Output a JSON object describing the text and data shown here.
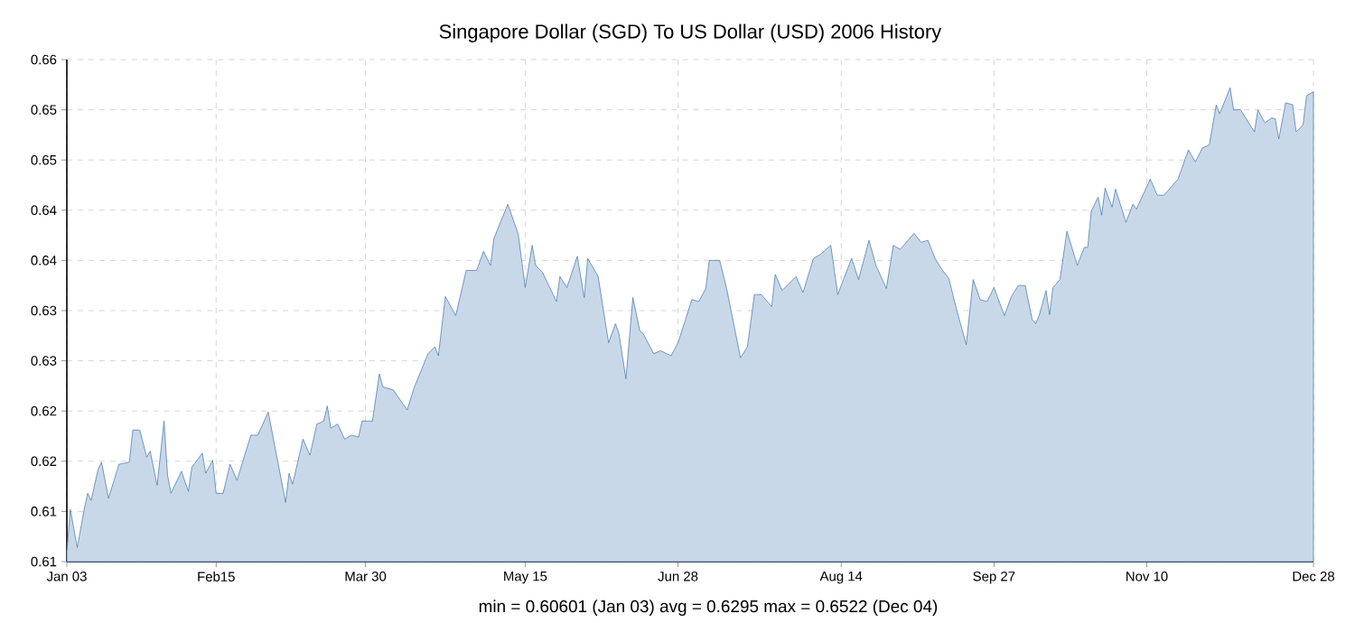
{
  "chart_data": {
    "type": "area",
    "title": "Singapore Dollar (SGD) To US Dollar (USD) 2006 History",
    "annotations": [
      "min = 0.60601 (Jan 03)   avg = 0.6295   max = 0.6522 (Dec 04)"
    ],
    "grid": true,
    "xlim": [
      "2006-01-03",
      "2006-12-28"
    ],
    "xticks": [
      {
        "value": "2006-01-03",
        "label": "Jan 03"
      },
      {
        "value": "2006-02-15",
        "label": "Feb15"
      },
      {
        "value": "2006-03-30",
        "label": "Mar 30"
      },
      {
        "value": "2006-05-15",
        "label": "May 15"
      },
      {
        "value": "2006-06-28",
        "label": "Jun 28"
      },
      {
        "value": "2006-08-14",
        "label": "Aug 14"
      },
      {
        "value": "2006-09-27",
        "label": "Sep 27"
      },
      {
        "value": "2006-11-10",
        "label": "Nov 10"
      },
      {
        "value": "2006-12-28",
        "label": "Dec 28"
      }
    ],
    "ylim": [
      0.605,
      0.655
    ],
    "yticks": [
      {
        "value": 0.605,
        "label": "0.61"
      },
      0.61,
      {
        "value": 0.615,
        "label": "0.62"
      },
      0.62,
      {
        "value": 0.625,
        "label": "0.63"
      },
      0.63,
      {
        "value": 0.635,
        "label": "0.64"
      },
      0.64,
      {
        "value": 0.645,
        "label": "0.65"
      },
      0.65,
      {
        "value": 0.655,
        "label": "0.66"
      }
    ],
    "series": [
      {
        "color": "#3d72ad",
        "x": [
          "2006-01-03",
          "2006-01-04",
          "2006-01-06",
          "2006-01-08",
          "2006-01-09",
          "2006-01-10",
          "2006-01-12",
          "2006-01-13",
          "2006-01-15",
          "2006-01-18",
          "2006-01-21",
          "2006-01-22",
          "2006-01-24",
          "2006-01-26",
          "2006-01-27",
          "2006-01-29",
          "2006-01-31",
          "2006-02-01",
          "2006-02-02",
          "2006-02-05",
          "2006-02-07",
          "2006-02-08",
          "2006-02-11",
          "2006-02-12",
          "2006-02-14",
          "2006-02-15",
          "2006-02-17",
          "2006-02-19",
          "2006-02-21",
          "2006-02-25",
          "2006-02-27",
          "2006-03-02",
          "2006-03-07",
          "2006-03-08",
          "2006-03-09",
          "2006-03-12",
          "2006-03-14",
          "2006-03-16",
          "2006-03-18",
          "2006-03-19",
          "2006-03-20",
          "2006-03-22",
          "2006-03-24",
          "2006-03-26",
          "2006-03-28",
          "2006-03-29",
          "2006-04-01",
          "2006-04-03",
          "2006-04-04",
          "2006-04-07",
          "2006-04-11",
          "2006-04-13",
          "2006-04-17",
          "2006-04-19",
          "2006-04-20",
          "2006-04-22",
          "2006-04-25",
          "2006-04-28",
          "2006-05-01",
          "2006-05-03",
          "2006-05-05",
          "2006-05-06",
          "2006-05-10",
          "2006-05-13",
          "2006-05-15",
          "2006-05-17",
          "2006-05-18",
          "2006-05-20",
          "2006-05-24",
          "2006-05-25",
          "2006-05-27",
          "2006-05-30",
          "2006-06-01",
          "2006-06-02",
          "2006-06-05",
          "2006-06-08",
          "2006-06-10",
          "2006-06-11",
          "2006-06-13",
          "2006-06-15",
          "2006-06-17",
          "2006-06-18",
          "2006-06-21",
          "2006-06-23",
          "2006-06-26",
          "2006-06-28",
          "2006-07-02",
          "2006-07-04",
          "2006-07-06",
          "2006-07-07",
          "2006-07-10",
          "2006-07-12",
          "2006-07-16",
          "2006-07-18",
          "2006-07-20",
          "2006-07-22",
          "2006-07-25",
          "2006-07-26",
          "2006-07-28",
          "2006-08-01",
          "2006-08-03",
          "2006-08-06",
          "2006-08-08",
          "2006-08-11",
          "2006-08-13",
          "2006-08-17",
          "2006-08-19",
          "2006-08-22",
          "2006-08-24",
          "2006-08-27",
          "2006-08-29",
          "2006-08-31",
          "2006-09-04",
          "2006-09-06",
          "2006-09-08",
          "2006-09-10",
          "2006-09-12",
          "2006-09-14",
          "2006-09-16",
          "2006-09-19",
          "2006-09-21",
          "2006-09-23",
          "2006-09-25",
          "2006-09-27",
          "2006-09-30",
          "2006-10-02",
          "2006-10-04",
          "2006-10-06",
          "2006-10-08",
          "2006-10-09",
          "2006-10-10",
          "2006-10-12",
          "2006-10-13",
          "2006-10-14",
          "2006-10-16",
          "2006-10-18",
          "2006-10-21",
          "2006-10-23",
          "2006-10-24",
          "2006-10-25",
          "2006-10-27",
          "2006-10-28",
          "2006-10-29",
          "2006-10-31",
          "2006-11-01",
          "2006-11-04",
          "2006-11-06",
          "2006-11-07",
          "2006-11-11",
          "2006-11-13",
          "2006-11-15",
          "2006-11-19",
          "2006-11-22",
          "2006-11-24",
          "2006-11-26",
          "2006-11-28",
          "2006-11-30",
          "2006-12-01",
          "2006-12-04",
          "2006-12-05",
          "2006-12-07",
          "2006-12-11",
          "2006-12-12",
          "2006-12-14",
          "2006-12-16",
          "2006-12-17",
          "2006-12-18",
          "2006-12-20",
          "2006-12-22",
          "2006-12-23",
          "2006-12-25",
          "2006-12-26",
          "2006-12-28"
        ],
        "values": [
          0.606,
          0.6102,
          0.6064,
          0.6102,
          0.6118,
          0.6111,
          0.6142,
          0.6149,
          0.6113,
          0.6147,
          0.6149,
          0.6181,
          0.6181,
          0.6154,
          0.616,
          0.6126,
          0.619,
          0.6136,
          0.6118,
          0.614,
          0.612,
          0.6144,
          0.6158,
          0.6138,
          0.6151,
          0.6118,
          0.6118,
          0.6147,
          0.6131,
          0.6176,
          0.6176,
          0.6199,
          0.6109,
          0.6138,
          0.6127,
          0.6172,
          0.6156,
          0.6187,
          0.619,
          0.6205,
          0.6183,
          0.6187,
          0.6172,
          0.6176,
          0.6174,
          0.619,
          0.619,
          0.6237,
          0.6224,
          0.6221,
          0.6201,
          0.6223,
          0.6257,
          0.6264,
          0.6255,
          0.6314,
          0.6295,
          0.634,
          0.634,
          0.6359,
          0.6345,
          0.6372,
          0.6406,
          0.6376,
          0.6323,
          0.6365,
          0.6345,
          0.6338,
          0.6309,
          0.6334,
          0.6323,
          0.6354,
          0.6313,
          0.6352,
          0.6334,
          0.6268,
          0.6287,
          0.6277,
          0.6232,
          0.6313,
          0.628,
          0.6277,
          0.6257,
          0.626,
          0.6255,
          0.6268,
          0.6311,
          0.6309,
          0.6322,
          0.635,
          0.635,
          0.6322,
          0.6253,
          0.6264,
          0.6316,
          0.6316,
          0.6304,
          0.6336,
          0.632,
          0.6334,
          0.6318,
          0.6352,
          0.6356,
          0.6365,
          0.6316,
          0.6352,
          0.6331,
          0.637,
          0.6345,
          0.6322,
          0.6365,
          0.6361,
          0.6377,
          0.6368,
          0.637,
          0.6352,
          0.6341,
          0.6332,
          0.6304,
          0.6266,
          0.6331,
          0.6311,
          0.6309,
          0.6323,
          0.6295,
          0.6314,
          0.6325,
          0.6325,
          0.6291,
          0.6287,
          0.6295,
          0.632,
          0.6296,
          0.6323,
          0.6331,
          0.6379,
          0.6345,
          0.6363,
          0.6363,
          0.6399,
          0.6413,
          0.6395,
          0.6422,
          0.6403,
          0.6421,
          0.6388,
          0.6406,
          0.6401,
          0.6431,
          0.6415,
          0.6415,
          0.6431,
          0.646,
          0.6448,
          0.6462,
          0.6465,
          0.6505,
          0.6496,
          0.6522,
          0.65,
          0.65,
          0.6478,
          0.65,
          0.6487,
          0.6492,
          0.6491,
          0.6471,
          0.6507,
          0.6505,
          0.6478,
          0.6485,
          0.6514,
          0.6518
        ]
      }
    ]
  }
}
